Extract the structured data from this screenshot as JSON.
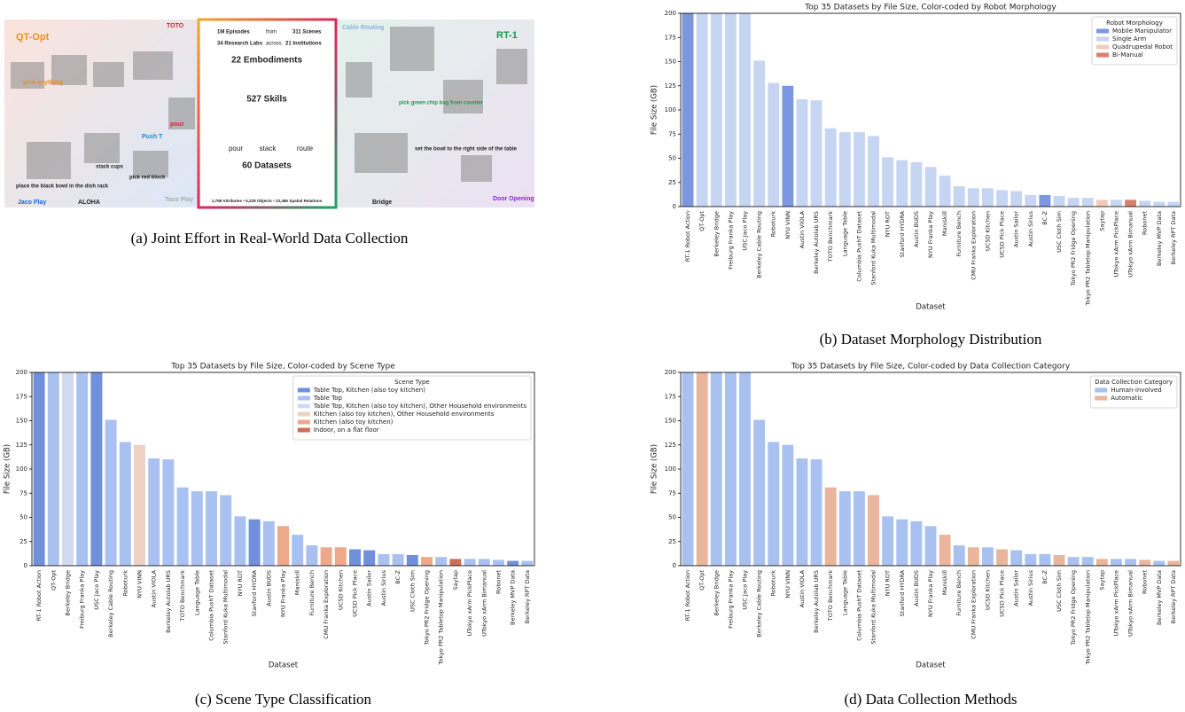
{
  "figure_a": {
    "caption": "(a) Joint Effort in Real-World Data Collection",
    "labels": [
      "QT-Opt",
      "TOTO",
      "pick anything",
      "pour",
      "Push T",
      "stack cups",
      "pick red block",
      "place the black bowl in the dish rack",
      "Jaco Play",
      "ALOHA",
      "Taco Play",
      "1M Episodes",
      "from",
      "311 Scenes",
      "34 Research Labs",
      "across",
      "21 Institutions",
      "22 Embodiments",
      "527 Skills",
      "pour",
      "stack",
      "route",
      "60 Datasets",
      "1,798 Attributes • 5,228 Objects • 23,486 Spatial Relations",
      "Cable Routing",
      "RT-1",
      "pick green chip bag from counter",
      "set the bowl to the right side of the table",
      "Bridge",
      "Door Opening"
    ]
  },
  "chart_data": [
    {
      "type": "bar",
      "title": "Top 35 Datasets by File Size, Color-coded by Robot Morphology",
      "caption": "(b) Dataset Morphology Distribution",
      "xlabel": "Dataset",
      "ylabel": "File Size (GB)",
      "legend_title": "Robot Morphology",
      "legend": "upper right",
      "categories": [
        "RT-1 Robot Action",
        "QT-Opt",
        "Berkeley Bridge",
        "Freiburg Franka Play",
        "USC Jaco Play",
        "Berkeley Cable Routing",
        "Roboturk",
        "NYU VINN",
        "Austin VIOLA",
        "Berkeley Autolab UR5",
        "TOTO Benchmark",
        "Language Table",
        "Columbia PushT Dataset",
        "Stanford Kuka Multimodal",
        "NYU ROT",
        "Stanford HYDRA",
        "Austin BUDS",
        "NYU Franka Play",
        "Maniskill",
        "Furniture Bench",
        "CMU Franka Exploration",
        "UCSD Kitchen",
        "UCSD Pick Place",
        "Austin Sailor",
        "Austin Sirius",
        "BC-Z",
        "USC Cloth Sim",
        "Tokyo PR2 Fridge Opening",
        "Tokyo PR2 Tabletop Manipulation",
        "Saytap",
        "UTokyo xArm PickPlace",
        "UTokyo xArm Bimanual",
        "Robonet",
        "Berkeley MVP Data",
        "Berkeley RPT Data"
      ],
      "ylim": [
        0,
        200
      ],
      "yticks": [
        0,
        25,
        50,
        75,
        100,
        125,
        150,
        175,
        200
      ],
      "series": [
        {
          "name": "Mobile Manipulator",
          "color": "#7b97e0",
          "values": [
            200,
            null,
            null,
            null,
            null,
            null,
            null,
            125,
            null,
            null,
            null,
            null,
            null,
            null,
            null,
            null,
            null,
            null,
            null,
            null,
            null,
            null,
            null,
            null,
            null,
            12,
            null,
            null,
            null,
            null,
            null,
            null,
            null,
            null,
            null
          ]
        },
        {
          "name": "Single Arm",
          "color": "#c6d5f1",
          "values": [
            null,
            200,
            200,
            200,
            200,
            151,
            128,
            null,
            111,
            110,
            81,
            77,
            77,
            73,
            51,
            48,
            46,
            41,
            32,
            21,
            19,
            19,
            17,
            16,
            12,
            null,
            11,
            9,
            9,
            null,
            7,
            null,
            6,
            5,
            5
          ]
        },
        {
          "name": "Quadrupedal Robot",
          "color": "#f1cbbb",
          "values": [
            null,
            null,
            null,
            null,
            null,
            null,
            null,
            null,
            null,
            null,
            null,
            null,
            null,
            null,
            null,
            null,
            null,
            null,
            null,
            null,
            null,
            null,
            null,
            null,
            null,
            null,
            null,
            null,
            null,
            7,
            null,
            null,
            null,
            null,
            null
          ]
        },
        {
          "name": "Bi-Manual",
          "color": "#d9806a",
          "values": [
            null,
            null,
            null,
            null,
            null,
            null,
            null,
            null,
            null,
            null,
            null,
            null,
            null,
            null,
            null,
            null,
            null,
            null,
            null,
            null,
            null,
            null,
            null,
            null,
            null,
            null,
            null,
            null,
            null,
            null,
            null,
            7,
            null,
            null,
            null
          ]
        }
      ]
    },
    {
      "type": "bar",
      "title": "Top 35 Datasets by File Size, Color-coded by Scene Type",
      "caption": "(c) Scene Type Classification",
      "xlabel": "Dataset",
      "ylabel": "File Size (GB)",
      "legend_title": "Scene Type",
      "legend": "upper right",
      "categories": [
        "RT-1 Robot Action",
        "QT-Opt",
        "Berkeley Bridge",
        "Freiburg Franka Play",
        "USC Jaco Play",
        "Berkeley Cable Routing",
        "Roboturk",
        "NYU VINN",
        "Austin VIOLA",
        "Berkeley Autolab UR5",
        "TOTO Benchmark",
        "Language Table",
        "Columbia PushT Dataset",
        "Stanford Kuka Multimodal",
        "NYU ROT",
        "Stanford HYDRA",
        "Austin BUDS",
        "NYU Franka Play",
        "Maniskill",
        "Furniture Bench",
        "CMU Franka Exploration",
        "UCSD Kitchen",
        "UCSD Pick Place",
        "Austin Sailor",
        "Austin Sirius",
        "BC-Z",
        "USC Cloth Sim",
        "Tokyo PR2 Fridge Opening",
        "Tokyo PR2 Tabletop Manipulation",
        "Saytap",
        "UTokyo xArm PickPlace",
        "UTokyo xArm Bimanual",
        "Robonet",
        "Berkeley MVP Data",
        "Berkeley RPT Data"
      ],
      "ylim": [
        0,
        200
      ],
      "yticks": [
        0,
        25,
        50,
        75,
        100,
        125,
        150,
        175,
        200
      ],
      "series": [
        {
          "name": "Table Top, Kitchen (also toy kitchen)",
          "color": "#7090dc",
          "values": [
            200,
            null,
            null,
            null,
            200,
            null,
            null,
            null,
            null,
            null,
            null,
            null,
            null,
            null,
            null,
            48,
            null,
            null,
            null,
            null,
            null,
            null,
            17,
            16,
            null,
            null,
            11,
            null,
            null,
            null,
            null,
            null,
            null,
            5,
            null
          ]
        },
        {
          "name": "Table Top",
          "color": "#a9c1f1",
          "values": [
            null,
            200,
            null,
            200,
            null,
            151,
            128,
            null,
            111,
            110,
            81,
            77,
            77,
            73,
            51,
            null,
            46,
            null,
            32,
            21,
            null,
            null,
            null,
            null,
            12,
            12,
            null,
            null,
            9,
            null,
            7,
            7,
            6,
            null,
            5
          ]
        },
        {
          "name": "Table Top, Kitchen (also toy kitchen), Other Household environments",
          "color": "#d0dbef",
          "values": [
            null,
            null,
            200,
            null,
            null,
            null,
            null,
            null,
            null,
            null,
            null,
            null,
            null,
            null,
            null,
            null,
            null,
            null,
            null,
            null,
            null,
            null,
            null,
            null,
            null,
            null,
            null,
            null,
            null,
            null,
            null,
            null,
            null,
            null,
            null
          ]
        },
        {
          "name": "Kitchen (also toy kitchen), Other Household environments",
          "color": "#ecd1c5",
          "values": [
            null,
            null,
            null,
            null,
            null,
            null,
            null,
            125,
            null,
            null,
            null,
            null,
            null,
            null,
            null,
            null,
            null,
            null,
            null,
            null,
            null,
            null,
            null,
            null,
            null,
            null,
            null,
            null,
            null,
            null,
            null,
            null,
            null,
            null,
            null
          ]
        },
        {
          "name": "Kitchen (also toy kitchen)",
          "color": "#eea98a",
          "values": [
            null,
            null,
            null,
            null,
            null,
            null,
            null,
            null,
            null,
            null,
            null,
            null,
            null,
            null,
            null,
            null,
            null,
            41,
            null,
            null,
            19,
            19,
            null,
            null,
            null,
            null,
            null,
            9,
            null,
            null,
            null,
            null,
            null,
            null,
            null
          ]
        },
        {
          "name": "Indoor, on a flat floor",
          "color": "#cc6f58",
          "values": [
            null,
            null,
            null,
            null,
            null,
            null,
            null,
            null,
            null,
            null,
            null,
            null,
            null,
            null,
            null,
            null,
            null,
            null,
            null,
            null,
            null,
            null,
            null,
            null,
            null,
            null,
            null,
            null,
            null,
            7,
            null,
            null,
            null,
            null,
            null
          ]
        }
      ]
    },
    {
      "type": "bar",
      "title": "Top 35 Datasets by File Size, Color-coded by Data Collection Category",
      "caption": "(d) Data Collection Methods",
      "xlabel": "Dataset",
      "ylabel": "File Size (GB)",
      "legend_title": "Data Collection Category",
      "legend": "upper right",
      "categories": [
        "RT-1 Robot Action",
        "QT-Opt",
        "Berkeley Bridge",
        "Freiburg Franka Play",
        "USC Jaco Play",
        "Berkeley Cable Routing",
        "Roboturk",
        "NYU VINN",
        "Austin VIOLA",
        "Berkeley Autolab UR5",
        "TOTO Benchmark",
        "Language Table",
        "Columbia PushT Dataset",
        "Stanford Kuka Multimodal",
        "NYU ROT",
        "Stanford HYDRA",
        "Austin BUDS",
        "NYU Franka Play",
        "Maniskill",
        "Furniture Bench",
        "CMU Franka Exploration",
        "UCSD Kitchen",
        "UCSD Pick Place",
        "Austin Sailor",
        "Austin Sirius",
        "BC-Z",
        "USC Cloth Sim",
        "Tokyo PR2 Fridge Opening",
        "Tokyo PR2 Tabletop Manipulation",
        "Saytap",
        "UTokyo xArm PickPlace",
        "UTokyo xArm Bimanual",
        "Robonet",
        "Berkeley MVP Data",
        "Berkeley RPT Data"
      ],
      "ylim": [
        0,
        200
      ],
      "yticks": [
        0,
        25,
        50,
        75,
        100,
        125,
        150,
        175,
        200
      ],
      "series": [
        {
          "name": "Human-involved",
          "color": "#a9c1f1",
          "values": [
            200,
            null,
            200,
            200,
            200,
            151,
            128,
            125,
            111,
            110,
            null,
            77,
            77,
            null,
            51,
            48,
            46,
            41,
            null,
            21,
            null,
            19,
            null,
            16,
            12,
            12,
            null,
            9,
            9,
            null,
            7,
            7,
            null,
            5,
            null
          ]
        },
        {
          "name": "Automatic",
          "color": "#eab59d",
          "values": [
            null,
            200,
            null,
            null,
            null,
            null,
            null,
            null,
            null,
            null,
            81,
            null,
            null,
            73,
            null,
            null,
            null,
            null,
            32,
            null,
            19,
            null,
            17,
            null,
            null,
            null,
            11,
            null,
            null,
            7,
            null,
            null,
            6,
            null,
            5
          ]
        }
      ]
    }
  ]
}
